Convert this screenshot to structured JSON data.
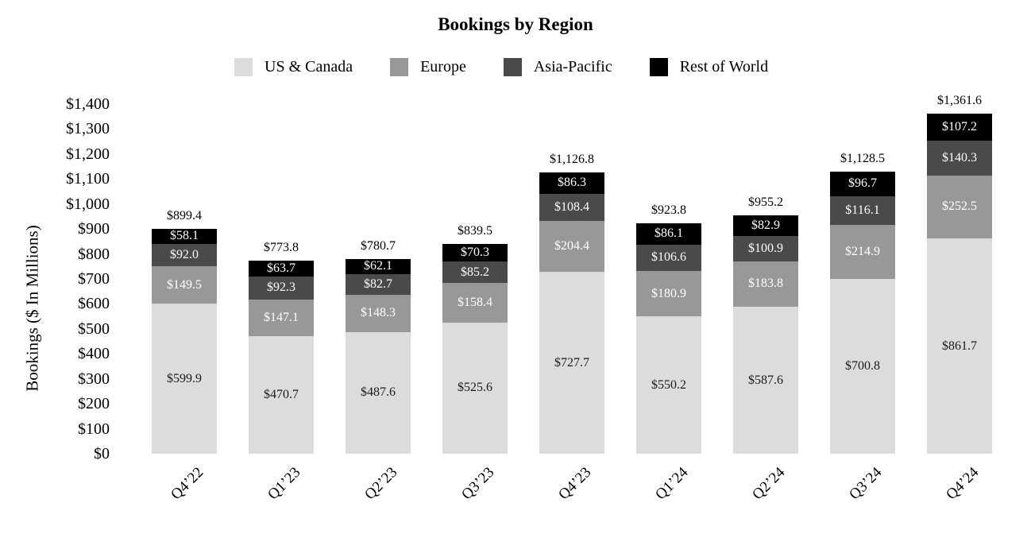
{
  "title": "Bookings by Region",
  "legend": {
    "items": [
      "US & Canada",
      "Europe",
      "Asia-Pacific",
      "Rest of World"
    ]
  },
  "y_axis": {
    "title": "Bookings ($ In Millions)",
    "tick_labels": [
      "$0",
      "$100",
      "$200",
      "$300",
      "$400",
      "$500",
      "$600",
      "$700",
      "$800",
      "$900",
      "$1,000",
      "$1,100",
      "$1,200",
      "$1,300",
      "$1,400"
    ]
  },
  "colors": {
    "us_canada": "#DCDCDC",
    "europe": "#989898",
    "asia_pacific": "#4A4A4A",
    "rest_of_world": "#000000",
    "label_on_light": "#1A1A1A",
    "label_on_dark": "#FFFFFF"
  },
  "chart_data": {
    "type": "bar",
    "stacked": true,
    "title": "Bookings by Region",
    "ylabel": "Bookings ($ In Millions)",
    "xlabel": "",
    "ylim": [
      0,
      1400
    ],
    "ytick_interval": 100,
    "grid": false,
    "legend_position": "top",
    "categories": [
      "Q4’22",
      "Q1’23",
      "Q2’23",
      "Q3’23",
      "Q4’23",
      "Q1’24",
      "Q2’24",
      "Q3’24",
      "Q4’24"
    ],
    "series": [
      {
        "name": "US & Canada",
        "color": "#DCDCDC",
        "label_color": "#1A1A1A",
        "values": [
          599.9,
          470.7,
          487.6,
          525.6,
          727.7,
          550.2,
          587.6,
          700.8,
          861.7
        ]
      },
      {
        "name": "Europe",
        "color": "#989898",
        "label_color": "#FFFFFF",
        "values": [
          149.5,
          147.1,
          148.3,
          158.4,
          204.4,
          180.9,
          183.8,
          214.9,
          252.5
        ]
      },
      {
        "name": "Asia-Pacific",
        "color": "#4A4A4A",
        "label_color": "#FFFFFF",
        "values": [
          92.0,
          92.3,
          82.7,
          85.2,
          108.4,
          106.6,
          100.9,
          116.1,
          140.3
        ]
      },
      {
        "name": "Rest of World",
        "color": "#000000",
        "label_color": "#FFFFFF",
        "values": [
          58.1,
          63.7,
          62.1,
          70.3,
          86.3,
          86.1,
          82.9,
          96.7,
          107.2
        ]
      }
    ],
    "totals": [
      899.4,
      773.8,
      780.7,
      839.5,
      1126.8,
      923.8,
      955.2,
      1128.5,
      1361.6
    ]
  }
}
